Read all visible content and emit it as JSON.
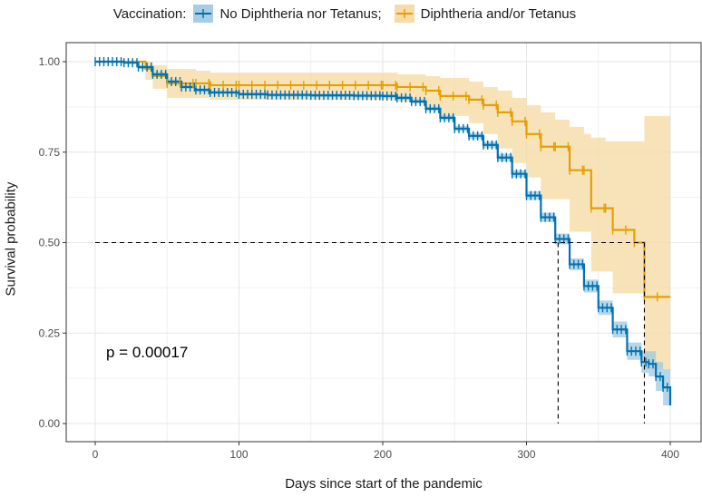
{
  "chart_data": {
    "type": "line",
    "subtype": "kaplan-meier survival curve",
    "title": "",
    "xlabel": "Days since start of the pandemic",
    "ylabel": "Survival probability",
    "xlim": [
      -20,
      420
    ],
    "ylim": [
      -0.05,
      1.05
    ],
    "x_ticks": [
      0,
      100,
      200,
      300,
      400
    ],
    "y_ticks": [
      0.0,
      0.25,
      0.5,
      0.75,
      1.0
    ],
    "y_tick_labels": [
      "0.00",
      "0.25",
      "0.50",
      "0.75",
      "1.00"
    ],
    "grid": true,
    "legend": {
      "position": "top",
      "title": "Vaccination:",
      "entries": [
        "No Diphtheria nor Tetanus;",
        "Diphtheria and/or Tetanus"
      ]
    },
    "annotation": "p = 0.00017",
    "median_survival": [
      {
        "series": "No Diphtheria nor Tetanus",
        "x": 322,
        "y": 0.5
      },
      {
        "series": "Diphtheria and/or Tetanus",
        "x": 382,
        "y": 0.5
      }
    ],
    "series": [
      {
        "name": "No Diphtheria nor Tetanus",
        "color": "#0072B2",
        "ci_color": "#9ecae1",
        "x": [
          0,
          20,
          30,
          40,
          50,
          60,
          70,
          80,
          100,
          120,
          150,
          180,
          200,
          210,
          220,
          230,
          240,
          250,
          260,
          270,
          280,
          290,
          300,
          310,
          320,
          330,
          340,
          350,
          360,
          370,
          380,
          385,
          390,
          395,
          400
        ],
        "y": [
          1.0,
          0.997,
          0.985,
          0.965,
          0.945,
          0.93,
          0.922,
          0.915,
          0.91,
          0.908,
          0.907,
          0.906,
          0.905,
          0.9,
          0.89,
          0.87,
          0.845,
          0.815,
          0.795,
          0.77,
          0.735,
          0.69,
          0.63,
          0.57,
          0.51,
          0.44,
          0.38,
          0.32,
          0.26,
          0.2,
          0.17,
          0.165,
          0.13,
          0.1,
          0.05
        ],
        "ci_lower": [
          1.0,
          0.995,
          0.98,
          0.958,
          0.94,
          0.925,
          0.917,
          0.91,
          0.905,
          0.903,
          0.902,
          0.901,
          0.9,
          0.894,
          0.884,
          0.864,
          0.838,
          0.808,
          0.787,
          0.761,
          0.725,
          0.68,
          0.618,
          0.557,
          0.495,
          0.424,
          0.362,
          0.3,
          0.238,
          0.176,
          0.14,
          0.13,
          0.09,
          0.05,
          0.02
        ],
        "ci_upper": [
          1.0,
          0.999,
          0.99,
          0.972,
          0.951,
          0.935,
          0.927,
          0.92,
          0.915,
          0.913,
          0.912,
          0.911,
          0.91,
          0.906,
          0.896,
          0.876,
          0.852,
          0.822,
          0.803,
          0.779,
          0.745,
          0.7,
          0.642,
          0.583,
          0.525,
          0.456,
          0.398,
          0.34,
          0.282,
          0.224,
          0.2,
          0.2,
          0.17,
          0.15,
          0.1
        ]
      },
      {
        "name": "Diphtheria and/or Tetanus",
        "color": "#E69F00",
        "ci_color": "#f5d9a0",
        "x": [
          0,
          30,
          35,
          40,
          50,
          70,
          80,
          100,
          200,
          210,
          230,
          240,
          260,
          270,
          280,
          290,
          300,
          310,
          320,
          330,
          340,
          345,
          355,
          360,
          375,
          382,
          400
        ],
        "y": [
          1.0,
          1.0,
          0.98,
          0.96,
          0.94,
          0.94,
          0.935,
          0.935,
          0.935,
          0.93,
          0.92,
          0.905,
          0.895,
          0.88,
          0.86,
          0.835,
          0.8,
          0.765,
          0.765,
          0.7,
          0.7,
          0.595,
          0.595,
          0.535,
          0.5,
          0.35,
          0.35
        ],
        "ci_lower": [
          1.0,
          1.0,
          0.95,
          0.925,
          0.9,
          0.9,
          0.895,
          0.895,
          0.895,
          0.89,
          0.87,
          0.85,
          0.83,
          0.8,
          0.76,
          0.72,
          0.68,
          0.62,
          0.62,
          0.53,
          0.53,
          0.42,
          0.42,
          0.36,
          0.36,
          0.15,
          0.15
        ],
        "ci_upper": [
          1.0,
          1.0,
          1.0,
          0.99,
          0.98,
          0.975,
          0.97,
          0.97,
          0.97,
          0.965,
          0.96,
          0.955,
          0.945,
          0.93,
          0.92,
          0.9,
          0.88,
          0.86,
          0.84,
          0.82,
          0.8,
          0.79,
          0.78,
          0.78,
          0.78,
          0.85,
          0.85
        ]
      }
    ]
  }
}
